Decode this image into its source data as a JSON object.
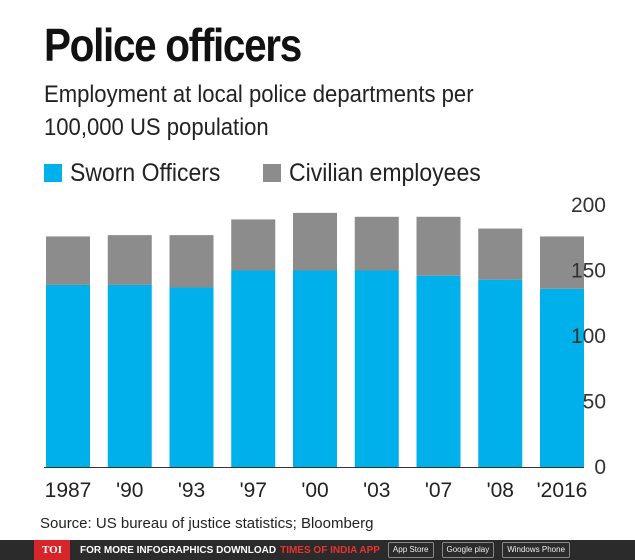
{
  "chart_data": {
    "type": "bar",
    "stacked": true,
    "title": "Police officers",
    "subtitle": "Employment at local police departments per 100,000 US population",
    "categories": [
      "1987",
      "'90",
      "'93",
      "'97",
      "'00",
      "'03",
      "'07",
      "'08",
      "'2016"
    ],
    "series": [
      {
        "name": "Sworn Officers",
        "color": "#00b0ea",
        "values": [
          139,
          139,
          137,
          150,
          150,
          150,
          146,
          143,
          136
        ]
      },
      {
        "name": "Civilian employees",
        "color": "#8c8c8c",
        "values": [
          37,
          38,
          40,
          39,
          44,
          41,
          45,
          39,
          40
        ]
      }
    ],
    "y_ticks": [
      "200",
      "150",
      "100",
      "50",
      "0"
    ],
    "ylim": [
      0,
      200
    ],
    "grid": false,
    "legend_position": "top-left"
  },
  "legend": {
    "sworn_label": "Sworn Officers",
    "civilian_label": "Civilian employees"
  },
  "source": "Source: US bureau of justice statistics; Bloomberg",
  "footer": {
    "logo": "TOI",
    "text": "FOR MORE INFOGRAPHICS DOWNLOAD",
    "app_name": "TIMES OF INDIA APP",
    "badges": [
      "App Store",
      "Google play",
      "Windows Phone"
    ]
  }
}
